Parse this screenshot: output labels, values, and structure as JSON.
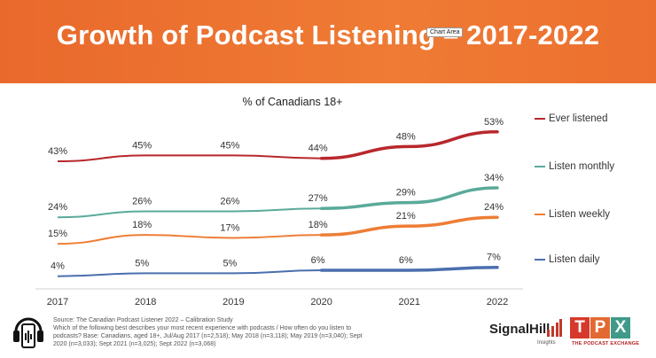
{
  "header": {
    "title": "Growth of Podcast Listening – 2017-2022",
    "tooltip": "Chart Area",
    "background": "#ec6f2f"
  },
  "chart_data": {
    "type": "line",
    "title": "% of Canadians 18+",
    "categories": [
      "2017",
      "2018",
      "2019",
      "2020",
      "2021",
      "2022"
    ],
    "ylim": [
      0,
      60
    ],
    "grid": false,
    "legend_position": "right",
    "series": [
      {
        "name": "Ever listened",
        "color": "#b8282c",
        "values": [
          43,
          45,
          45,
          44,
          48,
          53
        ],
        "labels": [
          "43%",
          "45%",
          "45%",
          "44%",
          "48%",
          "53%"
        ]
      },
      {
        "name": "Listen monthly",
        "color": "#5aaa9a",
        "values": [
          24,
          26,
          26,
          27,
          29,
          34
        ],
        "labels": [
          "24%",
          "26%",
          "26%",
          "27%",
          "29%",
          "34%"
        ]
      },
      {
        "name": "Listen weekly",
        "color": "#ee7d35",
        "values": [
          15,
          18,
          17,
          18,
          21,
          24
        ],
        "labels": [
          "15%",
          "18%",
          "17%",
          "18%",
          "21%",
          "24%"
        ]
      },
      {
        "name": "Listen daily",
        "color": "#4a6fae",
        "values": [
          4,
          5,
          5,
          6,
          6,
          7
        ],
        "labels": [
          "4%",
          "5%",
          "5%",
          "6%",
          "6%",
          "7%"
        ]
      }
    ]
  },
  "footer": {
    "source": "Source: The Canadian Podcast Listener 2022 – Calibration Study",
    "question": "Which of the following best describes your most recent experience with podcasts / How often do you listen to podcasts? Base: Canadians, aged 18+, Jul/Aug 2017 (n=2,518); May 2018 (n=3,118); May 2019 (n=3,040); Sept 2020 (n=3,033); Sept 2021 (n=3,025); Sept 2022 (n=3,068)",
    "signal_name": "SignalHill",
    "signal_sub": "Insights",
    "tpx_letters": [
      "T",
      "P",
      "X"
    ],
    "tpx_colors": [
      "#d6392b",
      "#e26a32",
      "#3f9a8a"
    ],
    "tpx_sub": "THE PODCAST EXCHANGE"
  }
}
